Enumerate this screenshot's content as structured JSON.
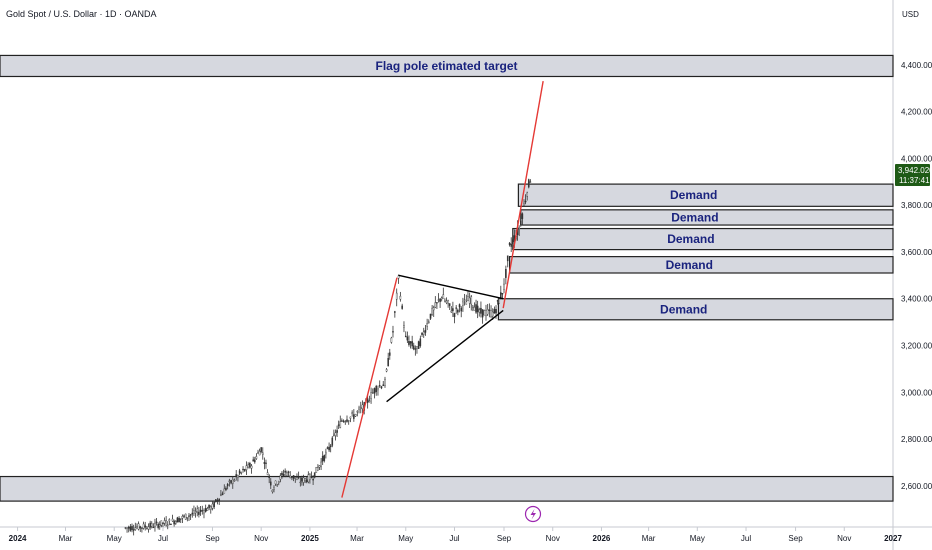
{
  "header": {
    "symbol_title": "Gold Spot / U.S. Dollar · 1D · OANDA",
    "currency": "USD"
  },
  "price_tag": {
    "price": "3,942.020",
    "countdown": "11:37:41",
    "color": "#1e5a16"
  },
  "colors": {
    "candle": "#333333",
    "trend_line": "#e53935",
    "zone_fill": "#d1d4dc",
    "zone_border": "#222222",
    "zone_text": "#1a237e",
    "triangle_line": "#000000",
    "event_icon": "#9c27b0"
  },
  "icons": {
    "event_marker": "lightning-icon"
  },
  "chart_data": {
    "type": "candlestick",
    "title": "Gold Spot / U.S. Dollar · 1D · OANDA",
    "ylabel": "USD",
    "ylim": [
      2420,
      4600
    ],
    "xlim": [
      "2023-12-10",
      "2027-01-01"
    ],
    "y_ticks": [
      {
        "value": 2600,
        "label": "2,600.000"
      },
      {
        "value": 2800,
        "label": "2,800.000"
      },
      {
        "value": 3000,
        "label": "3,000.000"
      },
      {
        "value": 3200,
        "label": "3,200.000"
      },
      {
        "value": 3400,
        "label": "3,400.000"
      },
      {
        "value": 3600,
        "label": "3,600.000"
      },
      {
        "value": 3800,
        "label": "3,800.000"
      },
      {
        "value": 4000,
        "label": "4,000.000"
      },
      {
        "value": 4200,
        "label": "4,200.000"
      },
      {
        "value": 4400,
        "label": "4,400.000"
      }
    ],
    "x_ticks": [
      {
        "date": "2024-01-01",
        "label": "2024",
        "bold": true
      },
      {
        "date": "2024-03-01",
        "label": "Mar"
      },
      {
        "date": "2024-05-01",
        "label": "May"
      },
      {
        "date": "2024-07-01",
        "label": "Jul"
      },
      {
        "date": "2024-09-01",
        "label": "Sep"
      },
      {
        "date": "2024-11-01",
        "label": "Nov"
      },
      {
        "date": "2025-01-01",
        "label": "2025",
        "bold": true
      },
      {
        "date": "2025-03-01",
        "label": "Mar"
      },
      {
        "date": "2025-05-01",
        "label": "May"
      },
      {
        "date": "2025-07-01",
        "label": "Jul"
      },
      {
        "date": "2025-09-01",
        "label": "Sep"
      },
      {
        "date": "2025-11-01",
        "label": "Nov"
      },
      {
        "date": "2026-01-01",
        "label": "2026",
        "bold": true
      },
      {
        "date": "2026-03-01",
        "label": "Mar"
      },
      {
        "date": "2026-05-01",
        "label": "May"
      },
      {
        "date": "2026-07-01",
        "label": "Jul"
      },
      {
        "date": "2026-09-01",
        "label": "Sep"
      },
      {
        "date": "2026-11-01",
        "label": "Nov"
      },
      {
        "date": "2027-01-01",
        "label": "2027",
        "bold": true
      }
    ],
    "price_path": [
      {
        "date": "2024-05-15",
        "close": 2420
      },
      {
        "date": "2024-06-15",
        "close": 2428
      },
      {
        "date": "2024-07-15",
        "close": 2450
      },
      {
        "date": "2024-08-15",
        "close": 2490
      },
      {
        "date": "2024-09-01",
        "close": 2510
      },
      {
        "date": "2024-09-20",
        "close": 2600
      },
      {
        "date": "2024-10-05",
        "close": 2650
      },
      {
        "date": "2024-10-20",
        "close": 2690
      },
      {
        "date": "2024-11-01",
        "close": 2760
      },
      {
        "date": "2024-11-15",
        "close": 2590
      },
      {
        "date": "2024-12-01",
        "close": 2660
      },
      {
        "date": "2024-12-20",
        "close": 2620
      },
      {
        "date": "2025-01-05",
        "close": 2640
      },
      {
        "date": "2025-01-25",
        "close": 2760
      },
      {
        "date": "2025-02-10",
        "close": 2880
      },
      {
        "date": "2025-02-25",
        "close": 2900
      },
      {
        "date": "2025-03-10",
        "close": 2940
      },
      {
        "date": "2025-03-25",
        "close": 3020
      },
      {
        "date": "2025-04-05",
        "close": 3040
      },
      {
        "date": "2025-04-15",
        "close": 3260
      },
      {
        "date": "2025-04-22",
        "close": 3480
      },
      {
        "date": "2025-05-01",
        "close": 3230
      },
      {
        "date": "2025-05-15",
        "close": 3180
      },
      {
        "date": "2025-06-01",
        "close": 3330
      },
      {
        "date": "2025-06-15",
        "close": 3410
      },
      {
        "date": "2025-07-01",
        "close": 3340
      },
      {
        "date": "2025-07-20",
        "close": 3400
      },
      {
        "date": "2025-08-01",
        "close": 3340
      },
      {
        "date": "2025-08-20",
        "close": 3340
      },
      {
        "date": "2025-09-01",
        "close": 3450
      },
      {
        "date": "2025-09-08",
        "close": 3620
      },
      {
        "date": "2025-09-20",
        "close": 3700
      },
      {
        "date": "2025-09-30",
        "close": 3860
      },
      {
        "date": "2025-10-06",
        "close": 3942
      }
    ],
    "zones": [
      {
        "label": "Flag pole etimated target",
        "top": 4440,
        "bottom": 4350,
        "start": "2023-12-10"
      },
      {
        "label": "Demand",
        "top": 3890,
        "bottom": 3795,
        "start": "2025-09-19"
      },
      {
        "label": "Demand",
        "top": 3780,
        "bottom": 3715,
        "start": "2025-09-22"
      },
      {
        "label": "Demand",
        "top": 3700,
        "bottom": 3610,
        "start": "2025-09-12"
      },
      {
        "label": "Demand",
        "top": 3580,
        "bottom": 3510,
        "start": "2025-09-08"
      },
      {
        "label": "Demand",
        "top": 3400,
        "bottom": 3310,
        "start": "2025-08-25"
      },
      {
        "label": "",
        "top": 2640,
        "bottom": 2535,
        "start": "2023-12-10"
      }
    ],
    "triangle": {
      "upper": [
        {
          "date": "2025-04-22",
          "price": 3500
        },
        {
          "date": "2025-08-31",
          "price": 3400
        }
      ],
      "lower": [
        {
          "date": "2025-04-07",
          "price": 2960
        },
        {
          "date": "2025-08-31",
          "price": 3350
        }
      ]
    },
    "trend_lines": [
      {
        "from": {
          "date": "2025-02-10",
          "price": 2550
        },
        "to": {
          "date": "2025-04-20",
          "price": 3490
        }
      },
      {
        "from": {
          "date": "2025-08-31",
          "price": 3360
        },
        "to": {
          "date": "2025-10-20",
          "price": 4330
        }
      }
    ]
  }
}
